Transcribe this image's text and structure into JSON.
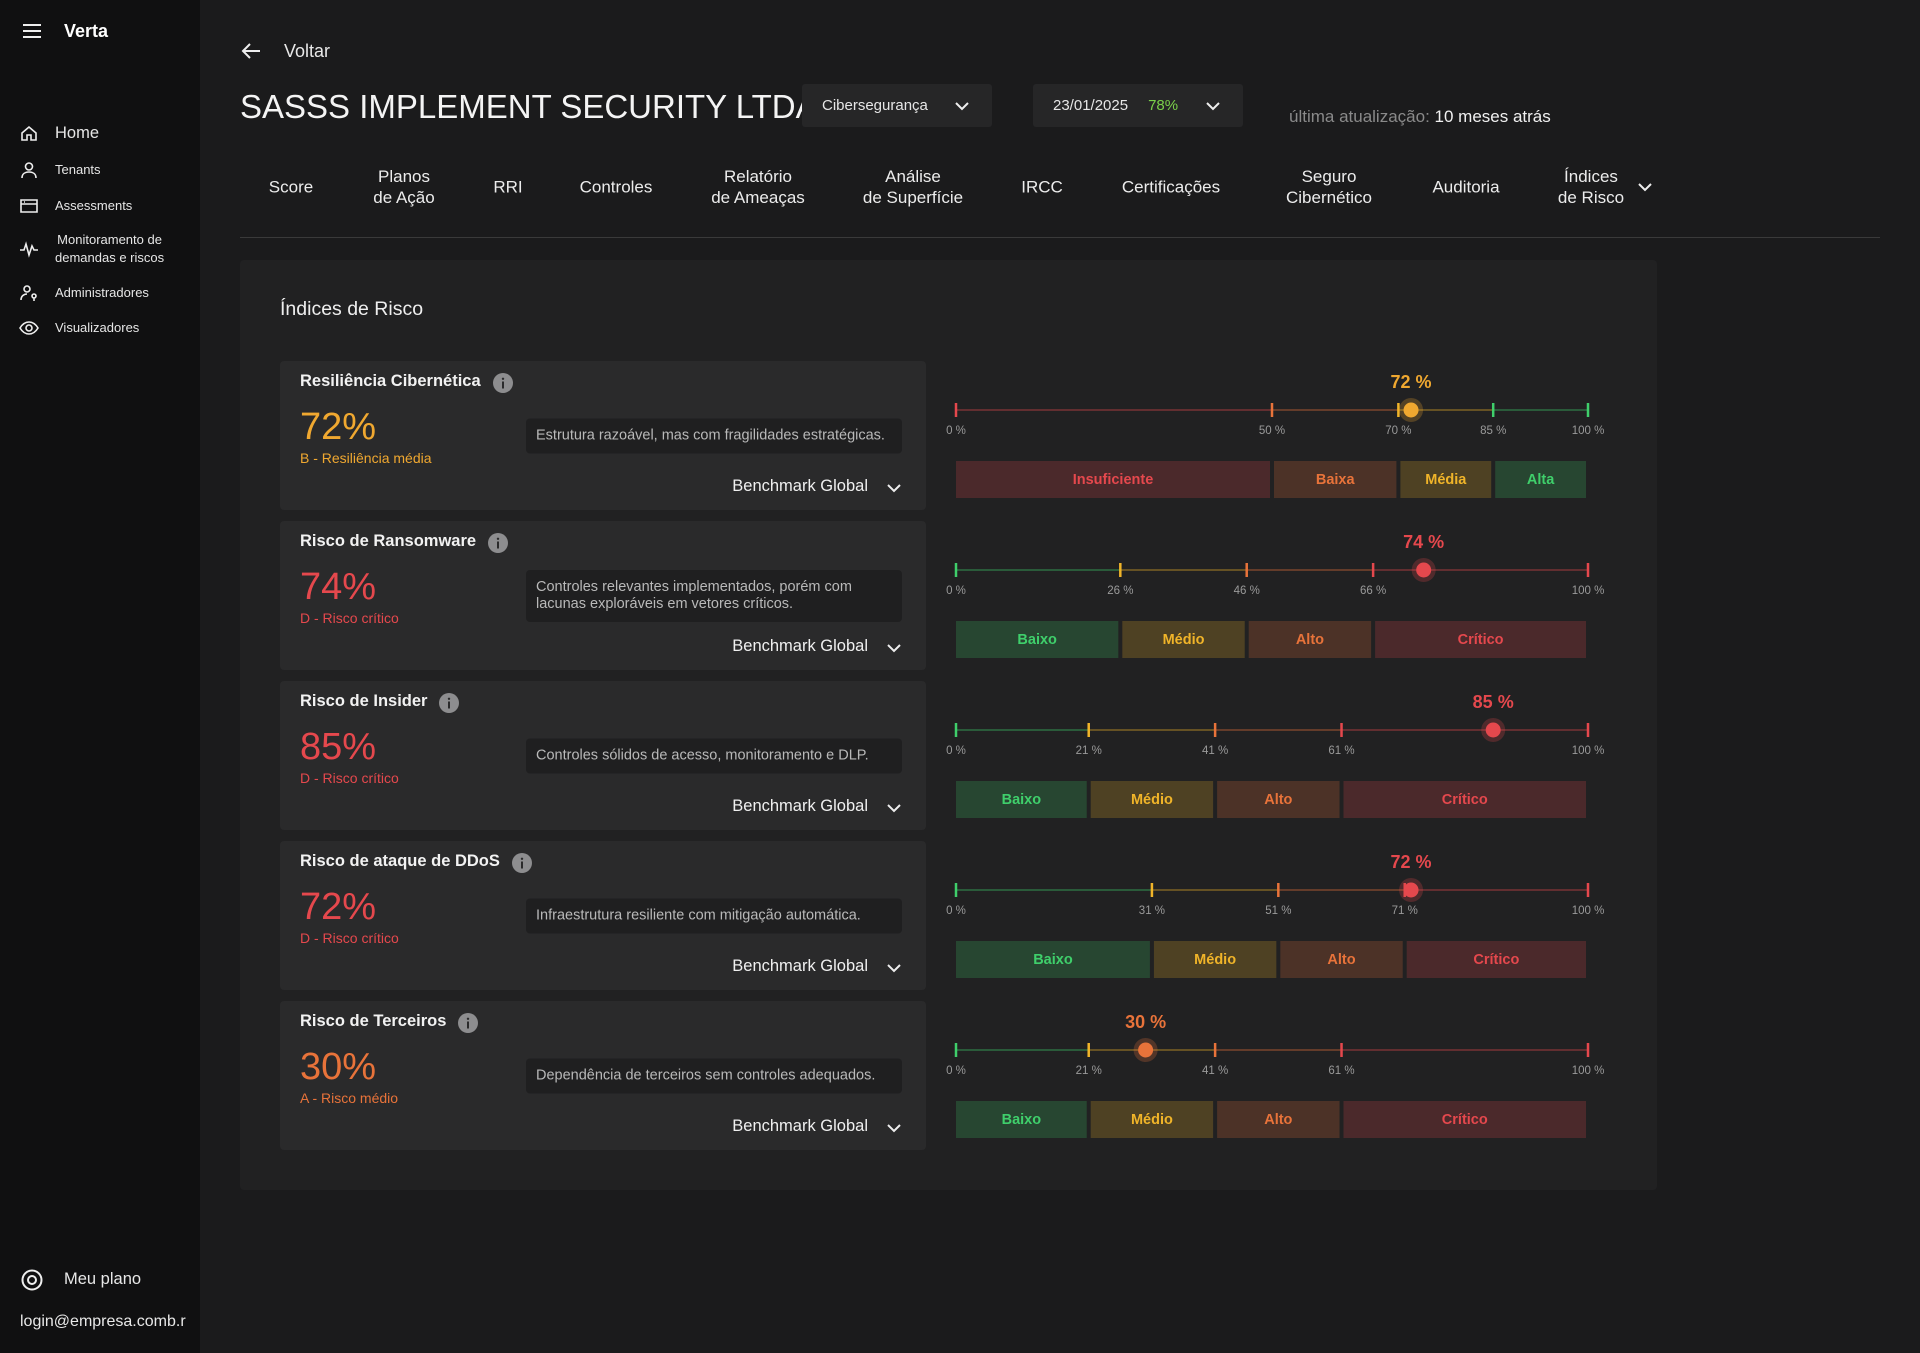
{
  "sidebar": {
    "brand": "Verta",
    "nav": [
      "Home",
      "Tenants",
      "Assessments",
      "Monitoramento de\ndemandas e riscos",
      "Administradores",
      "Visualizadores"
    ],
    "plan": "Meu plano",
    "user": "login@empresa.comb.r"
  },
  "header": {
    "back": "Voltar",
    "title": "SASSS IMPLEMENT SECURITY LTDA",
    "domain": "Cibersegurança",
    "date": "23/01/2025",
    "score": "78%",
    "updated_label": "última atualização:",
    "updated_value": "10 meses atrás"
  },
  "tabs": [
    "Score",
    "Planos\nde Ação",
    "RRI",
    "Controles",
    "Relatório\nde Ameaças",
    "Análise\nde Superfície",
    "IRCC",
    "Certificações",
    "Seguro\nCibernético",
    "Auditoria",
    "Índices\nde Risco"
  ],
  "panel": {
    "title": "Índices de Risco",
    "cards": [
      {
        "name": "Resiliência Cibernética",
        "score": "72%",
        "grade": "B - Resiliência média",
        "color": "#f0a830",
        "description": "Estrutura razoável, mas com fragilidades estratégicas.",
        "benchmark": "Benchmark Global",
        "gauge": {
          "value": 72,
          "label": "72 %",
          "xlim": [
            0,
            100
          ],
          "ticks": [
            {
              "value": 0,
              "label": "0 %"
            },
            {
              "value": 50,
              "label": "50 %"
            },
            {
              "value": 70,
              "label": "70 %"
            },
            {
              "value": 85,
              "label": "85 %"
            },
            {
              "value": 100,
              "label": "100 %"
            }
          ],
          "bands": [
            {
              "name": "Insuficiente",
              "color": "#e5484d"
            },
            {
              "name": "Baixa",
              "color": "#e8733a"
            },
            {
              "name": "Média",
              "color": "#f0b429"
            },
            {
              "name": "Alta",
              "color": "#3fcf6b"
            }
          ]
        }
      },
      {
        "name": "Risco de Ransomware",
        "score": "74%",
        "grade": "D - Risco crítico",
        "color": "#e5484d",
        "description": "Controles relevantes implementados, porém com lacunas exploráveis em vetores críticos.",
        "benchmark": "Benchmark Global",
        "gauge": {
          "value": 74,
          "label": "74 %",
          "xlim": [
            0,
            100
          ],
          "ticks": [
            {
              "value": 0,
              "label": "0 %"
            },
            {
              "value": 26,
              "label": "26 %"
            },
            {
              "value": 46,
              "label": "46 %"
            },
            {
              "value": 66,
              "label": "66 %"
            },
            {
              "value": 100,
              "label": "100 %"
            }
          ],
          "bands": [
            {
              "name": "Baixo",
              "color": "#3fcf6b"
            },
            {
              "name": "Médio",
              "color": "#f0b429"
            },
            {
              "name": "Alto",
              "color": "#e8733a"
            },
            {
              "name": "Crítico",
              "color": "#e5484d"
            }
          ]
        }
      },
      {
        "name": "Risco de Insider",
        "score": "85%",
        "grade": "D - Risco crítico",
        "color": "#e5484d",
        "description": "Controles sólidos de acesso, monitoramento e DLP.",
        "benchmark": "Benchmark Global",
        "gauge": {
          "value": 85,
          "label": "85 %",
          "xlim": [
            0,
            100
          ],
          "ticks": [
            {
              "value": 0,
              "label": "0 %"
            },
            {
              "value": 21,
              "label": "21 %"
            },
            {
              "value": 41,
              "label": "41 %"
            },
            {
              "value": 61,
              "label": "61 %"
            },
            {
              "value": 100,
              "label": "100 %"
            }
          ],
          "bands": [
            {
              "name": "Baixo",
              "color": "#3fcf6b"
            },
            {
              "name": "Médio",
              "color": "#f0b429"
            },
            {
              "name": "Alto",
              "color": "#e8733a"
            },
            {
              "name": "Crítico",
              "color": "#e5484d"
            }
          ]
        }
      },
      {
        "name": "Risco de ataque de DDoS",
        "score": "72%",
        "grade": "D - Risco crítico",
        "color": "#e5484d",
        "description": "Infraestrutura resiliente com mitigação automática.",
        "benchmark": "Benchmark Global",
        "gauge": {
          "value": 72,
          "label": "72 %",
          "xlim": [
            0,
            100
          ],
          "ticks": [
            {
              "value": 0,
              "label": "0 %"
            },
            {
              "value": 31,
              "label": "31 %"
            },
            {
              "value": 51,
              "label": "51 %"
            },
            {
              "value": 71,
              "label": "71 %"
            },
            {
              "value": 100,
              "label": "100 %"
            }
          ],
          "bands": [
            {
              "name": "Baixo",
              "color": "#3fcf6b"
            },
            {
              "name": "Médio",
              "color": "#f0b429"
            },
            {
              "name": "Alto",
              "color": "#e8733a"
            },
            {
              "name": "Crítico",
              "color": "#e5484d"
            }
          ]
        }
      },
      {
        "name": "Risco de Terceiros",
        "score": "30%",
        "grade": "A - Risco médio",
        "color": "#e8733a",
        "description": "Dependência de terceiros sem controles adequados.",
        "benchmark": "Benchmark Global",
        "gauge": {
          "value": 30,
          "label": "30 %",
          "xlim": [
            0,
            100
          ],
          "ticks": [
            {
              "value": 0,
              "label": "0 %"
            },
            {
              "value": 21,
              "label": "21 %"
            },
            {
              "value": 41,
              "label": "41 %"
            },
            {
              "value": 61,
              "label": "61 %"
            },
            {
              "value": 100,
              "label": "100 %"
            }
          ],
          "bands": [
            {
              "name": "Baixo",
              "color": "#3fcf6b"
            },
            {
              "name": "Médio",
              "color": "#f0b429"
            },
            {
              "name": "Alto",
              "color": "#e8733a"
            },
            {
              "name": "Crítico",
              "color": "#e5484d"
            }
          ]
        }
      }
    ]
  }
}
